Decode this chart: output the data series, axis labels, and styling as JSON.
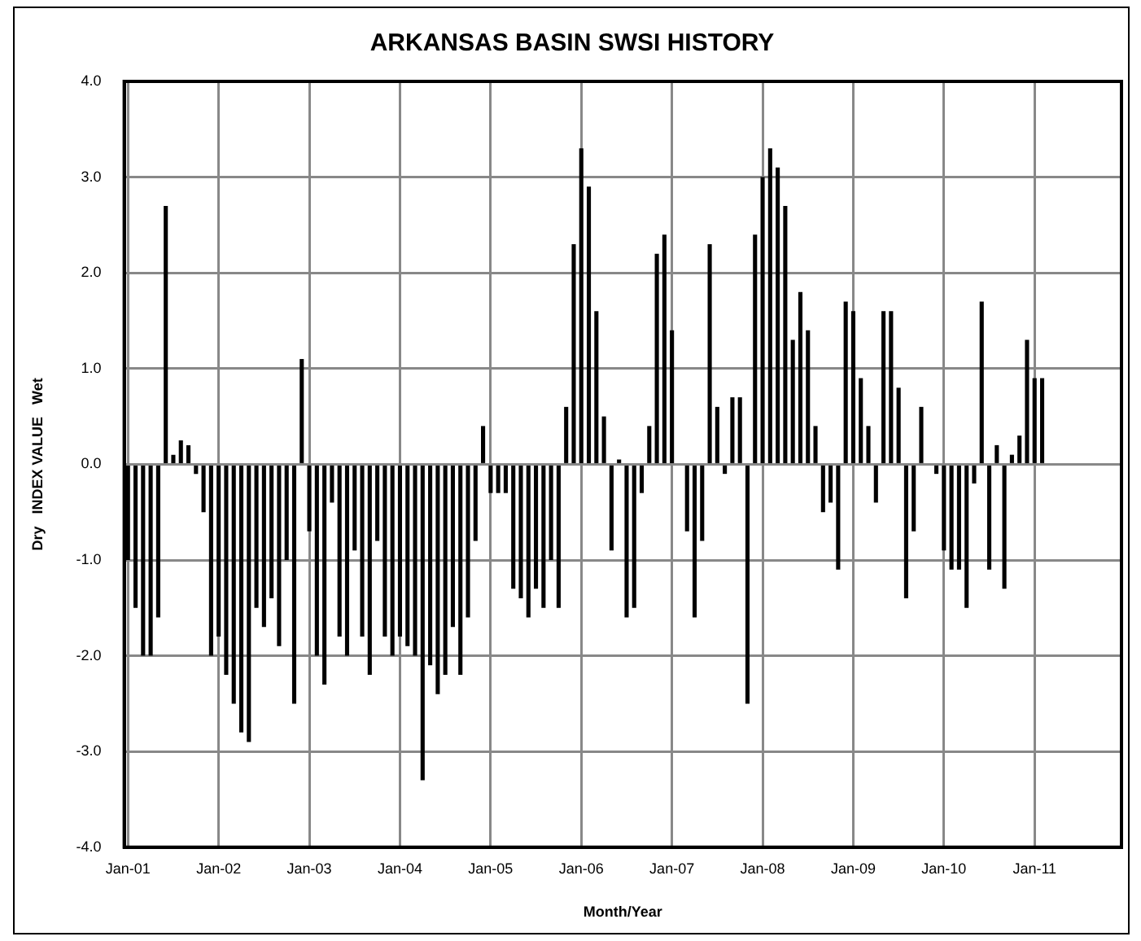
{
  "chart_data": {
    "type": "bar",
    "title": "ARKANSAS BASIN SWSI HISTORY",
    "xlabel": "Month/Year",
    "ylabel": "Dry   INDEX VALUE   Wet",
    "categories": [
      "Jan-01",
      null,
      null,
      null,
      null,
      null,
      null,
      null,
      null,
      null,
      null,
      null,
      "Jan-02",
      null,
      null,
      null,
      null,
      null,
      null,
      null,
      null,
      null,
      null,
      null,
      "Jan-03",
      null,
      null,
      null,
      null,
      null,
      null,
      null,
      null,
      null,
      null,
      null,
      "Jan-04",
      null,
      null,
      null,
      null,
      null,
      null,
      null,
      null,
      null,
      null,
      null,
      "Jan-05",
      null,
      null,
      null,
      null,
      null,
      null,
      null,
      null,
      null,
      null,
      null,
      "Jan-06",
      null,
      null,
      null,
      null,
      null,
      null,
      null,
      null,
      null,
      null,
      null,
      "Jan-07",
      null,
      null,
      null,
      null,
      null,
      null,
      null,
      null,
      null,
      null,
      null,
      "Jan-08",
      null,
      null,
      null,
      null,
      null,
      null,
      null,
      null,
      null,
      null,
      null,
      "Jan-09",
      null,
      null,
      null,
      null,
      null,
      null,
      null,
      null,
      null,
      null,
      null,
      "Jan-10",
      null,
      null,
      null,
      null,
      null,
      null,
      null,
      null,
      null,
      null,
      null,
      "Jan-11",
      null,
      null,
      null,
      null,
      null,
      null,
      null,
      null,
      null,
      null,
      null
    ],
    "values": [
      -1.0,
      -1.5,
      -2.0,
      -2.0,
      -1.6,
      2.7,
      0.1,
      0.25,
      0.2,
      -0.1,
      -0.5,
      -2.0,
      -1.8,
      -2.2,
      -2.5,
      -2.8,
      -2.9,
      -1.5,
      -1.7,
      -1.4,
      -1.9,
      -1.0,
      -2.5,
      1.1,
      -0.7,
      -2.0,
      -2.3,
      -0.4,
      -1.8,
      -2.0,
      -0.9,
      -1.8,
      -2.2,
      -0.8,
      -1.8,
      -2.0,
      -1.8,
      -1.9,
      -2.0,
      -3.3,
      -2.1,
      -2.4,
      -2.2,
      -1.7,
      -2.2,
      -1.6,
      -0.8,
      0.4,
      -0.3,
      -0.3,
      -0.3,
      -1.3,
      -1.4,
      -1.6,
      -1.3,
      -1.5,
      -1.0,
      -1.5,
      0.6,
      2.3,
      3.3,
      2.9,
      1.6,
      0.5,
      -0.9,
      0.05,
      -1.6,
      -1.5,
      -0.3,
      0.4,
      2.2,
      2.4,
      1.4,
      0,
      -0.7,
      -1.6,
      -0.8,
      2.3,
      0.6,
      -0.1,
      0.7,
      0.7,
      -2.5,
      2.4,
      3.0,
      3.3,
      3.1,
      2.7,
      1.3,
      1.8,
      1.4,
      0.4,
      -0.5,
      -0.4,
      -1.1,
      1.7,
      1.6,
      0.9,
      0.4,
      -0.4,
      1.6,
      1.6,
      0.8,
      -1.4,
      -0.7,
      0.6,
      0,
      -0.1,
      -0.9,
      -1.1,
      -1.1,
      -1.5,
      -0.2,
      1.7,
      -1.1,
      0.2,
      -1.3,
      0.1,
      0.3,
      1.3,
      0.9,
      0.9,
      null,
      null,
      null,
      null,
      null,
      null,
      null,
      null,
      null,
      null
    ],
    "color": "#000000",
    "ylim": [
      -4,
      4
    ],
    "yticks": [
      {
        "value": -4,
        "label": "-4.0"
      },
      {
        "value": -3,
        "label": "-3.0"
      },
      {
        "value": -2,
        "label": "-2.0"
      },
      {
        "value": -1,
        "label": "-1.0"
      },
      {
        "value": 0,
        "label": "0.0"
      },
      {
        "value": 1,
        "label": "1.0"
      },
      {
        "value": 2,
        "label": "2.0"
      },
      {
        "value": 3,
        "label": "3.0"
      },
      {
        "value": 4,
        "label": "4.0"
      }
    ],
    "grid": true,
    "legend": false
  }
}
